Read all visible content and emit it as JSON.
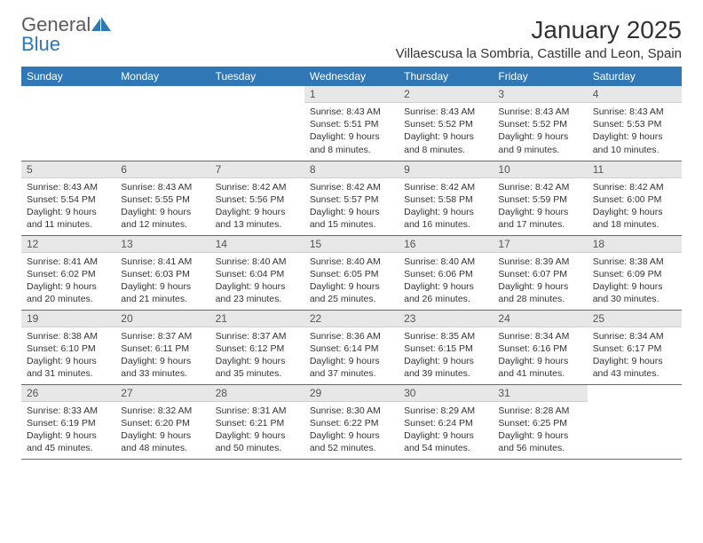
{
  "logo": {
    "line1": "General",
    "line2": "Blue"
  },
  "title": "January 2025",
  "location": "Villaescusa la Sombria, Castille and Leon, Spain",
  "colors": {
    "header_bg": "#2f77b5",
    "header_text": "#ffffff",
    "daynum_bg": "#e7e7e7",
    "text": "#333333",
    "logo_gray": "#5b5b5b",
    "logo_blue": "#2f77b5"
  },
  "typography": {
    "title_fontsize": 28,
    "location_fontsize": 15,
    "header_fontsize": 12,
    "daynum_fontsize": 12,
    "body_fontsize": 10.5
  },
  "calendar": {
    "columns": [
      "Sunday",
      "Monday",
      "Tuesday",
      "Wednesday",
      "Thursday",
      "Friday",
      "Saturday"
    ],
    "weeks": [
      [
        {
          "day": "",
          "sunrise": "",
          "sunset": "",
          "daylight1": "",
          "daylight2": "",
          "empty": true
        },
        {
          "day": "",
          "sunrise": "",
          "sunset": "",
          "daylight1": "",
          "daylight2": "",
          "empty": true
        },
        {
          "day": "",
          "sunrise": "",
          "sunset": "",
          "daylight1": "",
          "daylight2": "",
          "empty": true
        },
        {
          "day": "1",
          "sunrise": "Sunrise: 8:43 AM",
          "sunset": "Sunset: 5:51 PM",
          "daylight1": "Daylight: 9 hours",
          "daylight2": "and 8 minutes."
        },
        {
          "day": "2",
          "sunrise": "Sunrise: 8:43 AM",
          "sunset": "Sunset: 5:52 PM",
          "daylight1": "Daylight: 9 hours",
          "daylight2": "and 8 minutes."
        },
        {
          "day": "3",
          "sunrise": "Sunrise: 8:43 AM",
          "sunset": "Sunset: 5:52 PM",
          "daylight1": "Daylight: 9 hours",
          "daylight2": "and 9 minutes."
        },
        {
          "day": "4",
          "sunrise": "Sunrise: 8:43 AM",
          "sunset": "Sunset: 5:53 PM",
          "daylight1": "Daylight: 9 hours",
          "daylight2": "and 10 minutes."
        }
      ],
      [
        {
          "day": "5",
          "sunrise": "Sunrise: 8:43 AM",
          "sunset": "Sunset: 5:54 PM",
          "daylight1": "Daylight: 9 hours",
          "daylight2": "and 11 minutes."
        },
        {
          "day": "6",
          "sunrise": "Sunrise: 8:43 AM",
          "sunset": "Sunset: 5:55 PM",
          "daylight1": "Daylight: 9 hours",
          "daylight2": "and 12 minutes."
        },
        {
          "day": "7",
          "sunrise": "Sunrise: 8:42 AM",
          "sunset": "Sunset: 5:56 PM",
          "daylight1": "Daylight: 9 hours",
          "daylight2": "and 13 minutes."
        },
        {
          "day": "8",
          "sunrise": "Sunrise: 8:42 AM",
          "sunset": "Sunset: 5:57 PM",
          "daylight1": "Daylight: 9 hours",
          "daylight2": "and 15 minutes."
        },
        {
          "day": "9",
          "sunrise": "Sunrise: 8:42 AM",
          "sunset": "Sunset: 5:58 PM",
          "daylight1": "Daylight: 9 hours",
          "daylight2": "and 16 minutes."
        },
        {
          "day": "10",
          "sunrise": "Sunrise: 8:42 AM",
          "sunset": "Sunset: 5:59 PM",
          "daylight1": "Daylight: 9 hours",
          "daylight2": "and 17 minutes."
        },
        {
          "day": "11",
          "sunrise": "Sunrise: 8:42 AM",
          "sunset": "Sunset: 6:00 PM",
          "daylight1": "Daylight: 9 hours",
          "daylight2": "and 18 minutes."
        }
      ],
      [
        {
          "day": "12",
          "sunrise": "Sunrise: 8:41 AM",
          "sunset": "Sunset: 6:02 PM",
          "daylight1": "Daylight: 9 hours",
          "daylight2": "and 20 minutes."
        },
        {
          "day": "13",
          "sunrise": "Sunrise: 8:41 AM",
          "sunset": "Sunset: 6:03 PM",
          "daylight1": "Daylight: 9 hours",
          "daylight2": "and 21 minutes."
        },
        {
          "day": "14",
          "sunrise": "Sunrise: 8:40 AM",
          "sunset": "Sunset: 6:04 PM",
          "daylight1": "Daylight: 9 hours",
          "daylight2": "and 23 minutes."
        },
        {
          "day": "15",
          "sunrise": "Sunrise: 8:40 AM",
          "sunset": "Sunset: 6:05 PM",
          "daylight1": "Daylight: 9 hours",
          "daylight2": "and 25 minutes."
        },
        {
          "day": "16",
          "sunrise": "Sunrise: 8:40 AM",
          "sunset": "Sunset: 6:06 PM",
          "daylight1": "Daylight: 9 hours",
          "daylight2": "and 26 minutes."
        },
        {
          "day": "17",
          "sunrise": "Sunrise: 8:39 AM",
          "sunset": "Sunset: 6:07 PM",
          "daylight1": "Daylight: 9 hours",
          "daylight2": "and 28 minutes."
        },
        {
          "day": "18",
          "sunrise": "Sunrise: 8:38 AM",
          "sunset": "Sunset: 6:09 PM",
          "daylight1": "Daylight: 9 hours",
          "daylight2": "and 30 minutes."
        }
      ],
      [
        {
          "day": "19",
          "sunrise": "Sunrise: 8:38 AM",
          "sunset": "Sunset: 6:10 PM",
          "daylight1": "Daylight: 9 hours",
          "daylight2": "and 31 minutes."
        },
        {
          "day": "20",
          "sunrise": "Sunrise: 8:37 AM",
          "sunset": "Sunset: 6:11 PM",
          "daylight1": "Daylight: 9 hours",
          "daylight2": "and 33 minutes."
        },
        {
          "day": "21",
          "sunrise": "Sunrise: 8:37 AM",
          "sunset": "Sunset: 6:12 PM",
          "daylight1": "Daylight: 9 hours",
          "daylight2": "and 35 minutes."
        },
        {
          "day": "22",
          "sunrise": "Sunrise: 8:36 AM",
          "sunset": "Sunset: 6:14 PM",
          "daylight1": "Daylight: 9 hours",
          "daylight2": "and 37 minutes."
        },
        {
          "day": "23",
          "sunrise": "Sunrise: 8:35 AM",
          "sunset": "Sunset: 6:15 PM",
          "daylight1": "Daylight: 9 hours",
          "daylight2": "and 39 minutes."
        },
        {
          "day": "24",
          "sunrise": "Sunrise: 8:34 AM",
          "sunset": "Sunset: 6:16 PM",
          "daylight1": "Daylight: 9 hours",
          "daylight2": "and 41 minutes."
        },
        {
          "day": "25",
          "sunrise": "Sunrise: 8:34 AM",
          "sunset": "Sunset: 6:17 PM",
          "daylight1": "Daylight: 9 hours",
          "daylight2": "and 43 minutes."
        }
      ],
      [
        {
          "day": "26",
          "sunrise": "Sunrise: 8:33 AM",
          "sunset": "Sunset: 6:19 PM",
          "daylight1": "Daylight: 9 hours",
          "daylight2": "and 45 minutes."
        },
        {
          "day": "27",
          "sunrise": "Sunrise: 8:32 AM",
          "sunset": "Sunset: 6:20 PM",
          "daylight1": "Daylight: 9 hours",
          "daylight2": "and 48 minutes."
        },
        {
          "day": "28",
          "sunrise": "Sunrise: 8:31 AM",
          "sunset": "Sunset: 6:21 PM",
          "daylight1": "Daylight: 9 hours",
          "daylight2": "and 50 minutes."
        },
        {
          "day": "29",
          "sunrise": "Sunrise: 8:30 AM",
          "sunset": "Sunset: 6:22 PM",
          "daylight1": "Daylight: 9 hours",
          "daylight2": "and 52 minutes."
        },
        {
          "day": "30",
          "sunrise": "Sunrise: 8:29 AM",
          "sunset": "Sunset: 6:24 PM",
          "daylight1": "Daylight: 9 hours",
          "daylight2": "and 54 minutes."
        },
        {
          "day": "31",
          "sunrise": "Sunrise: 8:28 AM",
          "sunset": "Sunset: 6:25 PM",
          "daylight1": "Daylight: 9 hours",
          "daylight2": "and 56 minutes."
        },
        {
          "day": "",
          "sunrise": "",
          "sunset": "",
          "daylight1": "",
          "daylight2": "",
          "empty": true
        }
      ]
    ]
  }
}
